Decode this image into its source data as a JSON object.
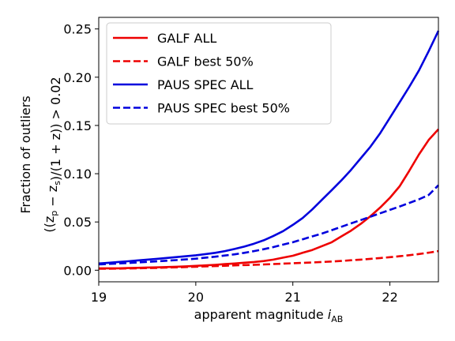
{
  "chart_data": {
    "type": "line",
    "xlabel": "apparent magnitude i_AB",
    "ylabel_line1": "Fraction of outliers",
    "ylabel_line2": "((z_p − z_s)/(1 + z)) > 0.02",
    "xlim": [
      19,
      22.5
    ],
    "ylim": [
      -0.012,
      0.262
    ],
    "x_ticks": [
      19,
      20,
      21,
      22
    ],
    "y_ticks": [
      0.0,
      0.05,
      0.1,
      0.15,
      0.2,
      0.25
    ],
    "x_tick_labels": [
      "19",
      "20",
      "21",
      "22"
    ],
    "y_tick_labels": [
      "0.00",
      "0.05",
      "0.10",
      "0.15",
      "0.20",
      "0.25"
    ],
    "grid": false,
    "legend_placement": "top-left",
    "x": [
      19.0,
      19.1,
      19.2,
      19.3,
      19.4,
      19.5,
      19.6,
      19.7,
      19.8,
      19.9,
      20.0,
      20.1,
      20.2,
      20.3,
      20.4,
      20.5,
      20.6,
      20.7,
      20.8,
      20.9,
      21.0,
      21.1,
      21.2,
      21.3,
      21.4,
      21.5,
      21.6,
      21.7,
      21.8,
      21.9,
      22.0,
      22.1,
      22.2,
      22.3,
      22.4,
      22.5
    ],
    "series": [
      {
        "name": "GALF ALL",
        "color": "#ee0000",
        "dash": "solid",
        "values": [
          0.002,
          0.002,
          0.002,
          0.0022,
          0.0025,
          0.0028,
          0.003,
          0.0033,
          0.0036,
          0.004,
          0.0045,
          0.005,
          0.0056,
          0.0063,
          0.007,
          0.0078,
          0.0085,
          0.0095,
          0.011,
          0.013,
          0.015,
          0.018,
          0.021,
          0.025,
          0.029,
          0.035,
          0.041,
          0.048,
          0.056,
          0.065,
          0.075,
          0.087,
          0.103,
          0.12,
          0.135,
          0.146
        ]
      },
      {
        "name": "GALF best 50%",
        "color": "#ee0000",
        "dash": "dashed",
        "values": [
          0.0015,
          0.0016,
          0.0017,
          0.0018,
          0.002,
          0.0022,
          0.0024,
          0.0027,
          0.003,
          0.0033,
          0.0036,
          0.004,
          0.0043,
          0.0046,
          0.005,
          0.0053,
          0.0056,
          0.006,
          0.0064,
          0.0068,
          0.0072,
          0.0076,
          0.008,
          0.0085,
          0.009,
          0.0096,
          0.0103,
          0.011,
          0.0118,
          0.0126,
          0.0135,
          0.0145,
          0.0156,
          0.0168,
          0.0182,
          0.0198
        ]
      },
      {
        "name": "PAUS SPEC ALL",
        "color": "#0000dd",
        "dash": "solid",
        "values": [
          0.007,
          0.0077,
          0.0085,
          0.0093,
          0.0102,
          0.011,
          0.0118,
          0.0127,
          0.0136,
          0.0145,
          0.0155,
          0.0167,
          0.018,
          0.0198,
          0.022,
          0.0245,
          0.0275,
          0.031,
          0.0355,
          0.0405,
          0.047,
          0.054,
          0.063,
          0.073,
          0.083,
          0.093,
          0.104,
          0.116,
          0.128,
          0.142,
          0.158,
          0.174,
          0.19,
          0.207,
          0.227,
          0.248
        ]
      },
      {
        "name": "PAUS SPEC best 50%",
        "color": "#0000dd",
        "dash": "dashed",
        "values": [
          0.006,
          0.0065,
          0.007,
          0.0075,
          0.008,
          0.0086,
          0.0092,
          0.0098,
          0.0105,
          0.0112,
          0.012,
          0.013,
          0.014,
          0.0152,
          0.0165,
          0.018,
          0.0198,
          0.0218,
          0.024,
          0.0265,
          0.029,
          0.032,
          0.035,
          0.038,
          0.0415,
          0.045,
          0.0485,
          0.052,
          0.0555,
          0.059,
          0.0625,
          0.066,
          0.0697,
          0.0735,
          0.078,
          0.088
        ]
      }
    ]
  }
}
